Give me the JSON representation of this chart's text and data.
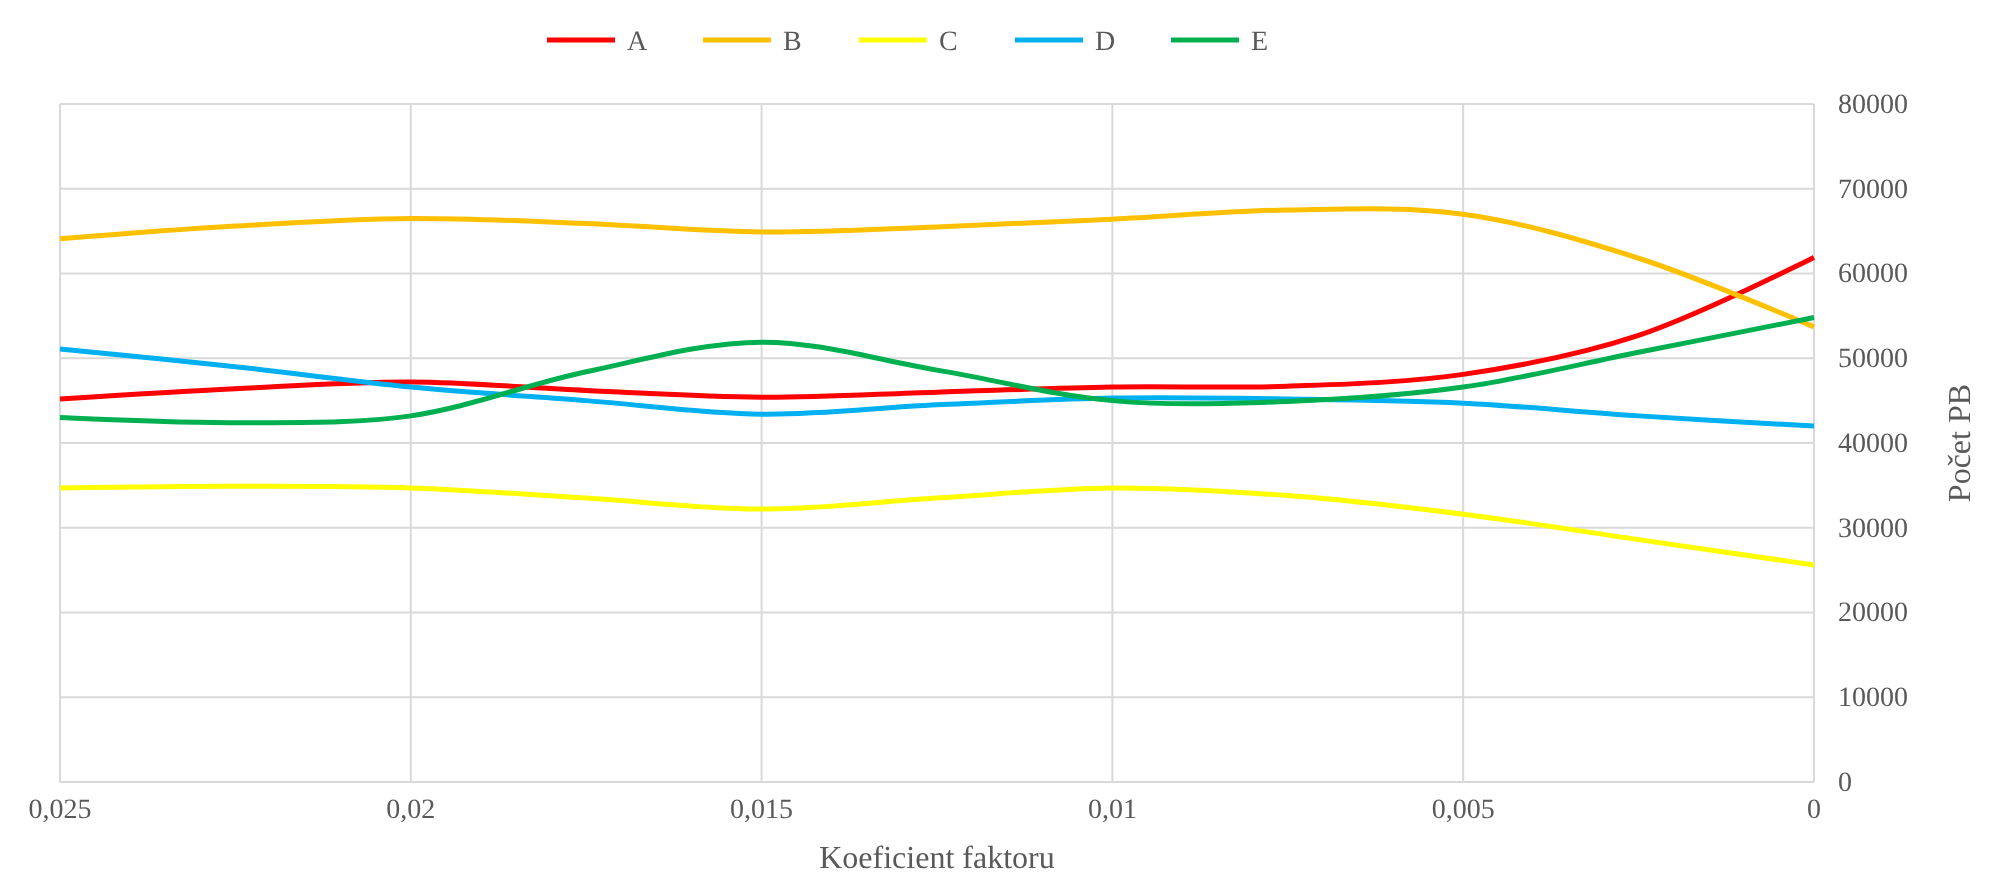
{
  "chart_data": {
    "type": "line",
    "xlabel": "Koeficient faktoru",
    "y2label": "Počet PB",
    "x": [
      0.025,
      0.0225,
      0.02,
      0.0175,
      0.015,
      0.0125,
      0.01,
      0.0075,
      0.005,
      0.0025,
      0
    ],
    "series": [
      {
        "name": "A",
        "color": "#ff0000",
        "axis": "y2",
        "values": [
          45200,
          46400,
          47200,
          46200,
          45400,
          46000,
          46600,
          46700,
          48100,
          52700,
          61900
        ]
      },
      {
        "name": "B",
        "color": "#ffc000",
        "axis": "y2",
        "values": [
          64100,
          65600,
          66500,
          65900,
          64900,
          65500,
          66400,
          67500,
          67000,
          61800,
          53700
        ]
      },
      {
        "name": "C",
        "color": "#ffff00",
        "axis": "y2",
        "values": [
          34700,
          34900,
          34700,
          33500,
          32200,
          33500,
          34700,
          33800,
          31600,
          28600,
          25600
        ]
      },
      {
        "name": "D",
        "color": "#00b0f0",
        "axis": "y2",
        "values": [
          51100,
          49000,
          46600,
          45000,
          43400,
          44500,
          45300,
          45200,
          44700,
          43200,
          42000
        ]
      },
      {
        "name": "E",
        "color": "#00b050",
        "axis": "y2",
        "values": [
          43000,
          42400,
          43200,
          48400,
          51900,
          48600,
          45000,
          44900,
          46600,
          50700,
          54800
        ]
      }
    ],
    "xlim": [
      0.025,
      0
    ],
    "xticks": [
      {
        "value": 0.025,
        "label": "0,025"
      },
      {
        "value": 0.02,
        "label": "0,02"
      },
      {
        "value": 0.015,
        "label": "0,015"
      },
      {
        "value": 0.01,
        "label": "0,01"
      },
      {
        "value": 0.005,
        "label": "0,005"
      },
      0
    ],
    "y2lim": [
      0,
      80000
    ],
    "y2ticks": [
      0,
      10000,
      20000,
      30000,
      40000,
      50000,
      60000,
      70000,
      80000
    ],
    "grid": true,
    "legend": "top",
    "marker": "none",
    "line_style": "solid"
  }
}
